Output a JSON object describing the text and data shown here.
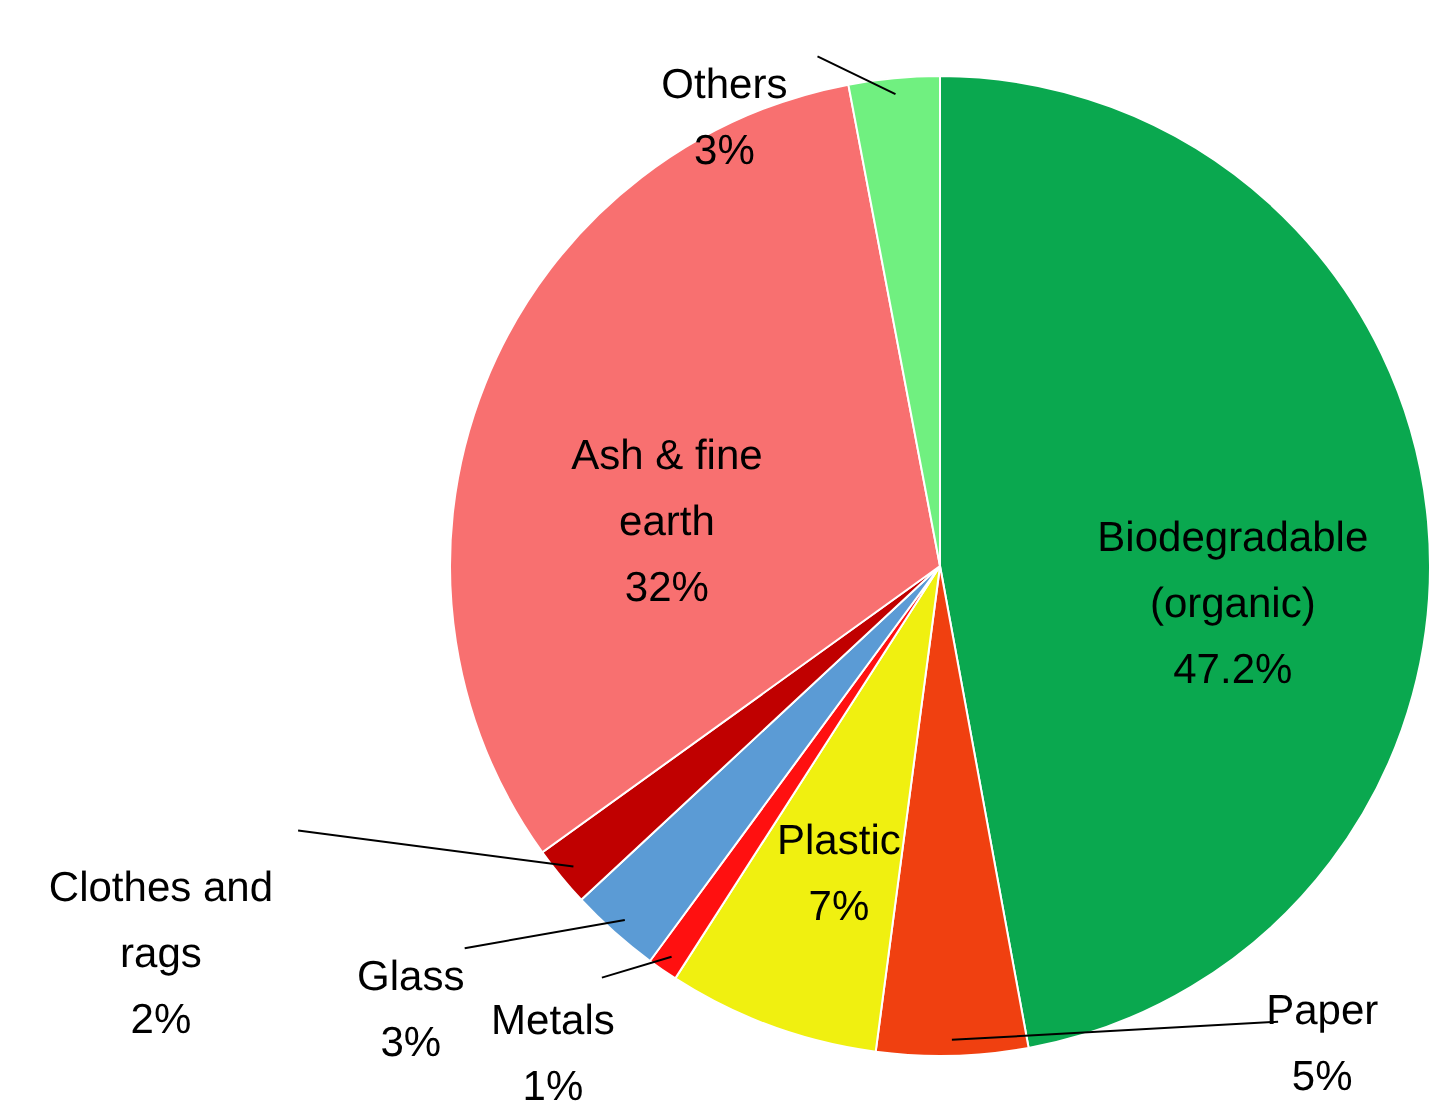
{
  "chart_data": {
    "type": "pie",
    "categories": [
      "Biodegradable\n(organic)",
      "Paper",
      "Plastic",
      "Metals",
      "Glass",
      "Clothes and\nrags",
      "Ash & fine\nearth",
      "Others"
    ],
    "values": [
      47.2,
      5,
      7,
      1,
      3,
      2,
      32,
      3
    ],
    "value_labels": [
      "47.2%",
      "5%",
      "7%",
      "1%",
      "3%",
      "2%",
      "32%",
      "3%"
    ],
    "colors": [
      "#0aa84f",
      "#f04010",
      "#f0f010",
      "#ff1010",
      "#5b9bd5",
      "#c00000",
      "#f87070",
      "#70f080"
    ]
  }
}
